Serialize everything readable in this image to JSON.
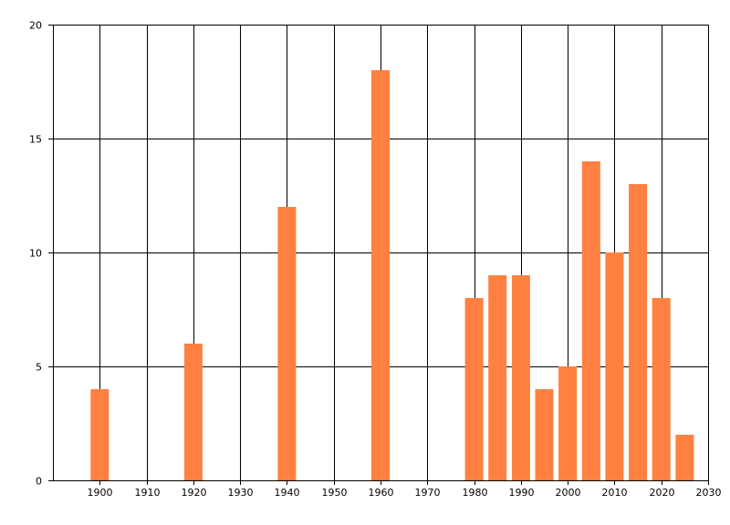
{
  "colors": {
    "bar": "#FF8040",
    "grid": "#000000",
    "axis": "#000000",
    "background": "#FFFFFF"
  },
  "chart_data": {
    "type": "bar",
    "title": "",
    "xlabel": "",
    "ylabel": "",
    "grid": true,
    "xlim": [
      1890,
      2030
    ],
    "ylim": [
      0,
      20
    ],
    "x_ticks": [
      1900,
      1910,
      1920,
      1930,
      1940,
      1950,
      1960,
      1970,
      1980,
      1990,
      2000,
      2010,
      2020,
      2030
    ],
    "y_ticks": [
      0,
      5,
      10,
      15,
      20
    ],
    "series": [
      {
        "x": [
          1900,
          1920,
          1940,
          1960,
          1980,
          1985,
          1990,
          1995,
          2000,
          2005,
          2010,
          2015,
          2020,
          2025
        ],
        "values": [
          4,
          6,
          12,
          18,
          8,
          9,
          9,
          4,
          5,
          14,
          10,
          13,
          8,
          2
        ]
      }
    ]
  }
}
